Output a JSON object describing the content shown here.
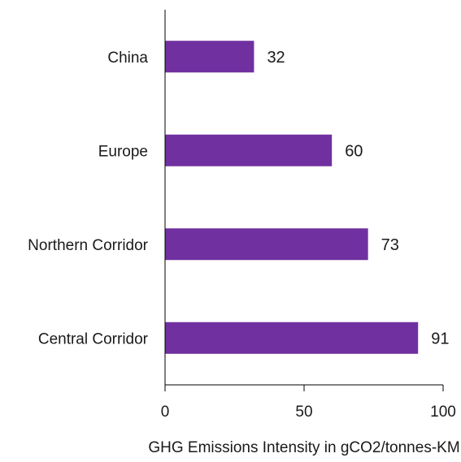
{
  "chart_data": {
    "type": "bar",
    "orientation": "horizontal",
    "categories": [
      "China",
      "Europe",
      "Northern Corridor",
      "Central Corridor"
    ],
    "values": [
      32,
      60,
      73,
      91
    ],
    "title": "",
    "xlabel": "GHG Emissions Intensity in gCO2/tonnes-KM",
    "ylabel": "",
    "xlim": [
      0,
      100
    ],
    "xticks": [
      0,
      50,
      100
    ],
    "grid": false,
    "legend": "none",
    "bar_color": "#7030a0",
    "show_data_labels": true
  }
}
